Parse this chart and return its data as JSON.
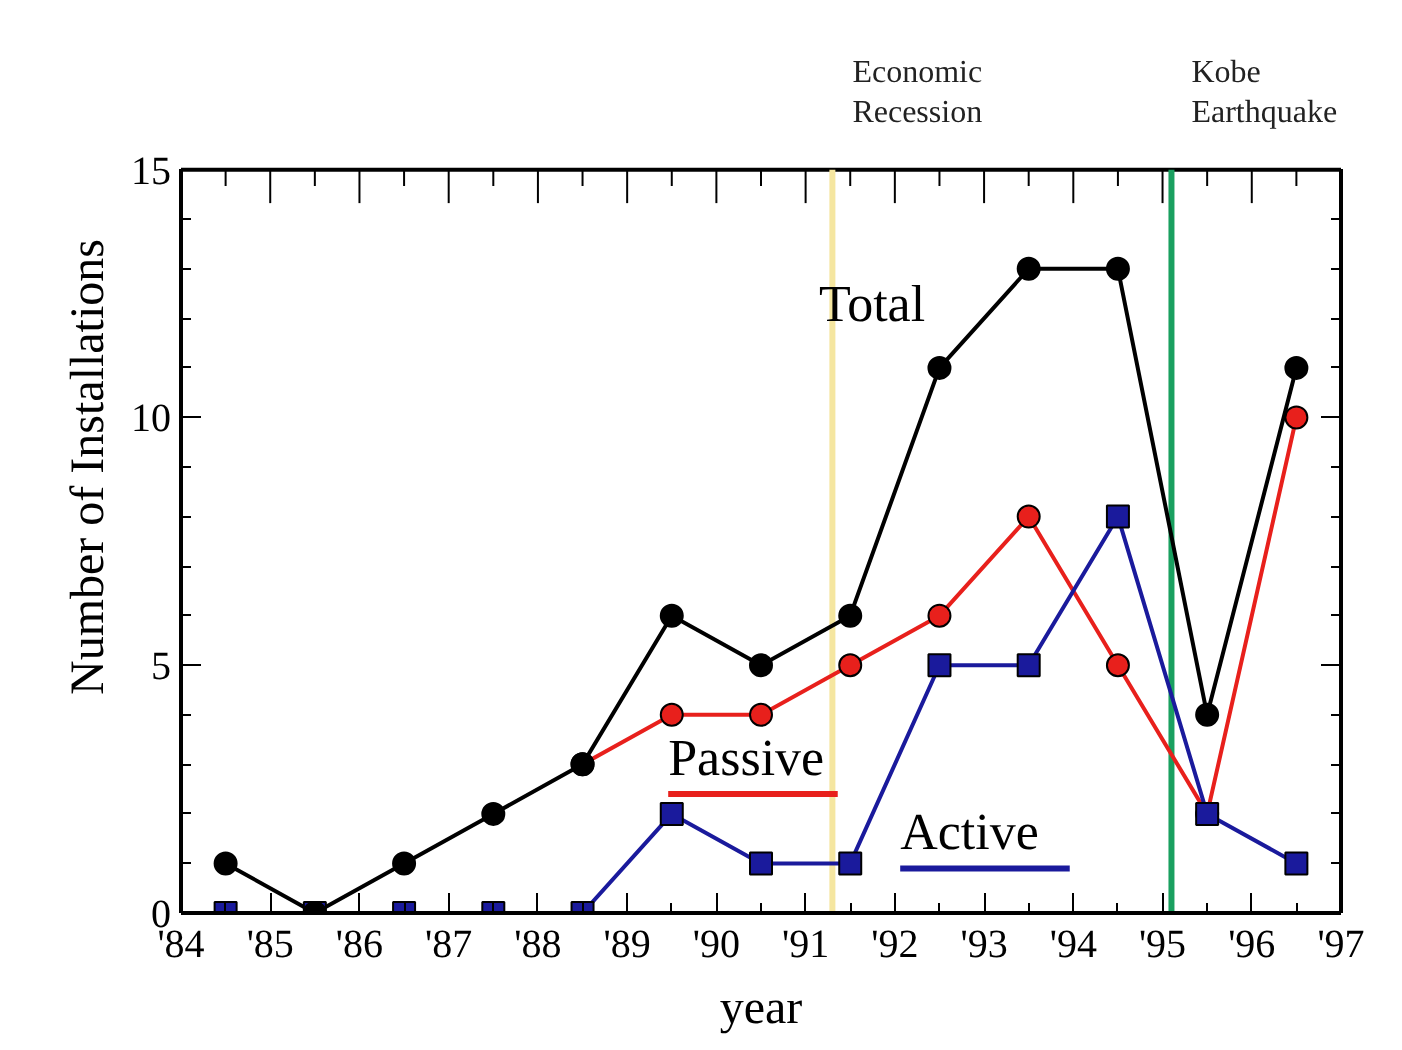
{
  "chart_data": {
    "type": "line",
    "xlabel": "year",
    "ylabel": "Number of Installations",
    "x": [
      84.5,
      85.5,
      86.5,
      87.5,
      88.5,
      89.5,
      90.5,
      91.5,
      92.5,
      93.5,
      94.5,
      95.5,
      96.5
    ],
    "series": [
      {
        "name": "Total",
        "color": "#000000",
        "marker": "circle",
        "values": [
          1,
          0,
          1,
          2,
          3,
          6,
          5,
          6,
          11,
          13,
          13,
          4,
          11
        ]
      },
      {
        "name": "Passive",
        "color": "#e8201c",
        "marker": "circle",
        "values": [
          null,
          null,
          null,
          null,
          3,
          4,
          4,
          5,
          6,
          8,
          5,
          2,
          10
        ]
      },
      {
        "name": "Active",
        "color": "#1a1a9c",
        "marker": "square",
        "values": [
          0,
          0,
          0,
          0,
          0,
          2,
          1,
          1,
          5,
          5,
          8,
          2,
          1
        ]
      }
    ],
    "xlim": [
      84,
      97
    ],
    "ylim": [
      0,
      15
    ],
    "xticks": [
      {
        "value": 84,
        "label": "'84"
      },
      {
        "value": 85,
        "label": "'85"
      },
      {
        "value": 86,
        "label": "'86"
      },
      {
        "value": 87,
        "label": "'87"
      },
      {
        "value": 88,
        "label": "'88"
      },
      {
        "value": 89,
        "label": "'89"
      },
      {
        "value": 90,
        "label": "'90"
      },
      {
        "value": 91,
        "label": "'91"
      },
      {
        "value": 92,
        "label": "'92"
      },
      {
        "value": 93,
        "label": "'93"
      },
      {
        "value": 94,
        "label": "'94"
      },
      {
        "value": 95,
        "label": "'95"
      },
      {
        "value": 96,
        "label": "'96"
      },
      {
        "value": 97,
        "label": "'97"
      }
    ],
    "yticks": [
      0,
      5,
      10,
      15
    ],
    "ref_lines": [
      {
        "axis": "x",
        "value": 91.3,
        "label": "Economic Recession",
        "color": "#f5e6a0"
      },
      {
        "axis": "x",
        "value": 95.1,
        "label": "Kobe Earthquake",
        "color": "#1aa060"
      }
    ],
    "grid": false,
    "legend": false,
    "line_style": "solid"
  }
}
